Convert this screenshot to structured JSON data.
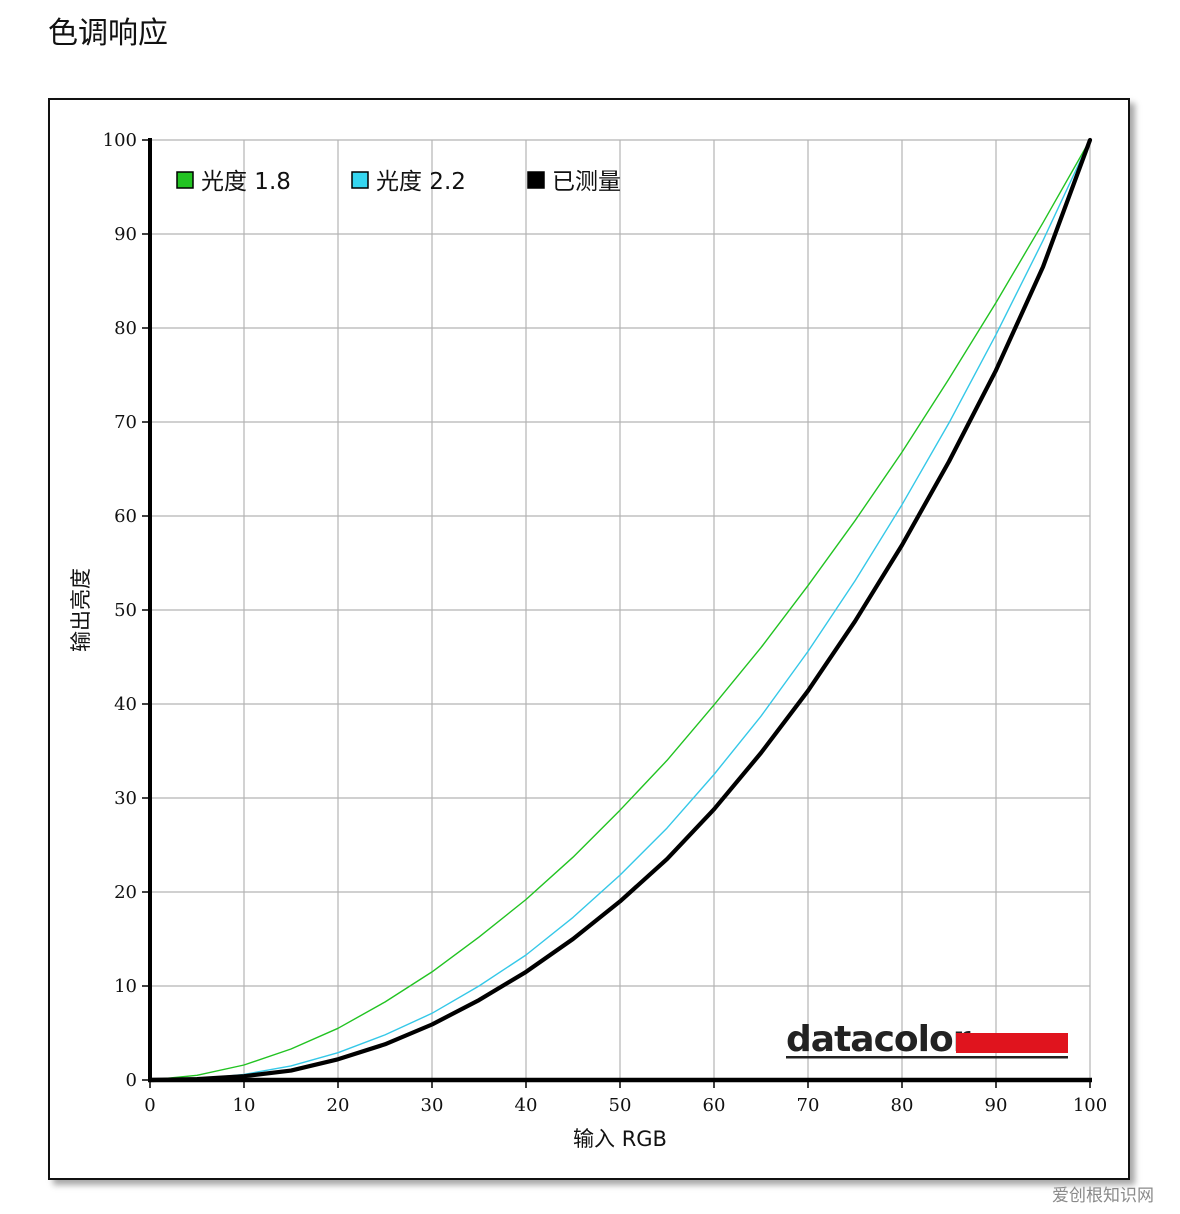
{
  "page": {
    "title": "色调响应"
  },
  "watermark": "爱创根知识网",
  "brand": {
    "name": "datacolor",
    "accent": "#e0141e"
  },
  "chart_data": {
    "type": "line",
    "title": "",
    "xlabel": "输入 RGB",
    "ylabel": "输出亮度",
    "xlim": [
      0,
      100
    ],
    "ylim": [
      0,
      100
    ],
    "xticks": [
      0,
      10,
      20,
      30,
      40,
      50,
      60,
      70,
      80,
      90,
      100
    ],
    "yticks": [
      0,
      10,
      20,
      30,
      40,
      50,
      60,
      70,
      80,
      90,
      100
    ],
    "grid": true,
    "legend_position": "top-left",
    "series": [
      {
        "name": "光度 1.8",
        "color": "#22c322",
        "marker": "#22c322",
        "x": [
          0,
          5,
          10,
          15,
          20,
          25,
          30,
          35,
          40,
          45,
          50,
          55,
          60,
          65,
          70,
          75,
          80,
          85,
          90,
          95,
          100
        ],
        "y": [
          0,
          0.5,
          1.6,
          3.3,
          5.5,
          8.3,
          11.5,
          15.2,
          19.2,
          23.7,
          28.7,
          34.0,
          39.9,
          46.0,
          52.6,
          59.5,
          66.8,
          74.6,
          82.7,
          91.2,
          100
        ]
      },
      {
        "name": "光度 2.2",
        "color": "#35c8e8",
        "marker": "#35d6f0",
        "x": [
          0,
          5,
          10,
          15,
          20,
          25,
          30,
          35,
          40,
          45,
          50,
          55,
          60,
          65,
          70,
          75,
          80,
          85,
          90,
          95,
          100
        ],
        "y": [
          0,
          0.1,
          0.6,
          1.5,
          2.9,
          4.8,
          7.1,
          10.0,
          13.3,
          17.3,
          21.8,
          26.8,
          32.5,
          38.7,
          45.6,
          53.1,
          61.2,
          69.9,
          79.3,
          89.3,
          100
        ]
      },
      {
        "name": "已测量",
        "color": "#000000",
        "marker": "#000000",
        "x": [
          0,
          5,
          10,
          15,
          20,
          25,
          30,
          35,
          40,
          45,
          50,
          55,
          60,
          65,
          70,
          75,
          80,
          85,
          90,
          95,
          100
        ],
        "y": [
          0,
          0.1,
          0.4,
          1.0,
          2.2,
          3.8,
          5.9,
          8.5,
          11.5,
          15.0,
          19.0,
          23.5,
          28.8,
          34.8,
          41.4,
          48.8,
          56.9,
          65.8,
          75.5,
          86.5,
          100
        ]
      }
    ]
  }
}
